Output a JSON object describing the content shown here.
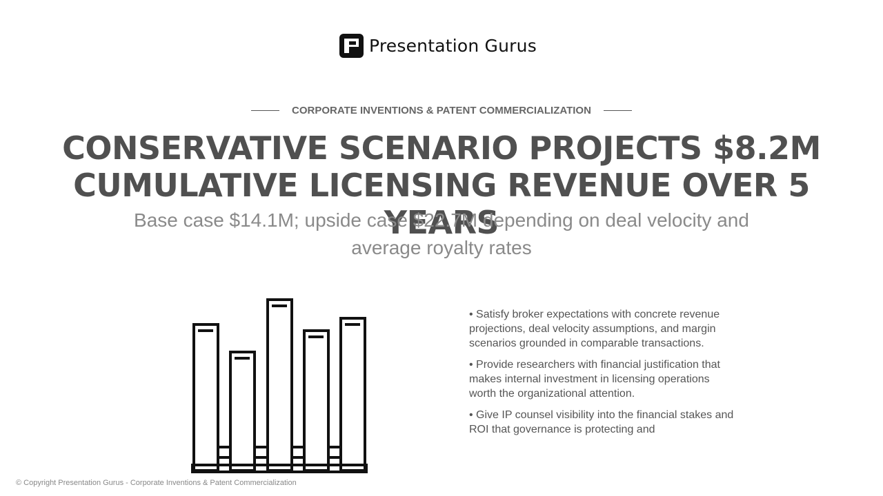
{
  "logo": {
    "text": "Presentation Gurus",
    "icon": "presentation-gurus-logo-mark"
  },
  "eyebrow": "CORPORATE INVENTIONS & PATENT COMMERCIALIZATION",
  "title": "CONSERVATIVE SCENARIO PROJECTS $8.2M CUMULATIVE LICENSING REVENUE OVER 5 YEARS",
  "subtitle": "Base case $14.1M; upside case $22.7M depending on deal velocity and average royalty rates",
  "illustration": {
    "icon": "bar-chart-icon"
  },
  "bullets": [
    "Satisfy broker expectations with concrete revenue projections, deal velocity assumptions, and margin scenarios grounded in comparable transactions.",
    "Provide researchers with financial justification that makes internal investment in licensing operations worth the organizational attention.",
    "Give IP counsel visibility into the financial stakes and ROI that governance is protecting and"
  ],
  "footer": "© Copyright Presentation Gurus - Corporate Inventions & Patent Commercialization",
  "colors": {
    "title": "#505050",
    "subtitle": "#8a8a8a",
    "body": "#555555",
    "logo": "#111111"
  }
}
